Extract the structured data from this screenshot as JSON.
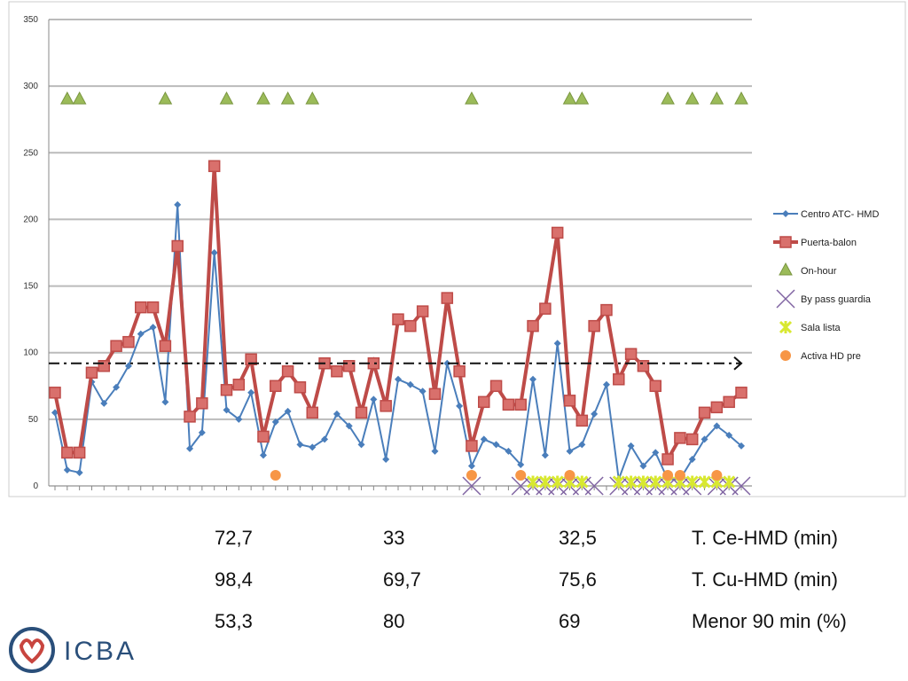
{
  "chart_data": {
    "type": "line",
    "categories": [
      null,
      null,
      null,
      null,
      null,
      null,
      null,
      null,
      null,
      null,
      null,
      null,
      null,
      null,
      null,
      null,
      null,
      null,
      null,
      null,
      null,
      null,
      null,
      null,
      null,
      null,
      null,
      null,
      null,
      null,
      null,
      null,
      null,
      null,
      null,
      null,
      null,
      null,
      null,
      null,
      null,
      null,
      null,
      null,
      null,
      null,
      null,
      null,
      null,
      null,
      null,
      null,
      null,
      null,
      null,
      null,
      null
    ],
    "ylim": [
      0,
      350
    ],
    "yticks": [
      0,
      50,
      100,
      150,
      200,
      250,
      300,
      350
    ],
    "grid": true,
    "legend": "right",
    "reference_line": 92,
    "series": [
      {
        "name": "Centro ATC- HMD",
        "color": "#4a7ebb",
        "marker": "diamond",
        "line": true,
        "values": [
          55,
          12,
          10,
          78,
          62,
          74,
          90,
          114,
          119,
          63,
          211,
          28,
          40,
          175,
          57,
          50,
          70,
          23,
          48,
          56,
          31,
          29,
          35,
          54,
          45,
          31,
          65,
          20,
          80,
          76,
          71,
          26,
          92,
          60,
          15,
          35,
          31,
          26,
          16,
          80,
          23,
          107,
          26,
          31,
          54,
          76,
          5,
          30,
          15,
          25,
          5,
          5,
          20,
          35,
          45,
          38,
          30
        ]
      },
      {
        "name": "Puerta-balon",
        "color": "#be4b48",
        "marker": "square",
        "line": true,
        "values": [
          70,
          25,
          25,
          85,
          90,
          105,
          108,
          134,
          134,
          105,
          180,
          52,
          62,
          240,
          72,
          76,
          95,
          37,
          75,
          86,
          74,
          55,
          92,
          86,
          90,
          55,
          92,
          60,
          125,
          120,
          131,
          69,
          141,
          86,
          30,
          63,
          75,
          61,
          61,
          120,
          133,
          190,
          64,
          49,
          120,
          132,
          80,
          99,
          90,
          75,
          20,
          36,
          35,
          55,
          59,
          63,
          70
        ]
      },
      {
        "name": "On-hour",
        "color": "#9bbb59",
        "marker": "triangle",
        "line": false,
        "values": [
          null,
          290,
          290,
          null,
          null,
          null,
          null,
          null,
          null,
          290,
          null,
          null,
          null,
          null,
          290,
          null,
          null,
          290,
          null,
          290,
          null,
          290,
          null,
          null,
          null,
          null,
          null,
          null,
          null,
          null,
          null,
          null,
          null,
          null,
          290,
          null,
          null,
          null,
          null,
          null,
          null,
          null,
          290,
          290,
          null,
          null,
          null,
          null,
          null,
          null,
          290,
          null,
          290,
          null,
          290,
          null,
          290
        ]
      },
      {
        "name": "By pass guardia",
        "color": "#8064a2",
        "marker": "x",
        "line": false,
        "values": [
          null,
          null,
          null,
          null,
          null,
          null,
          null,
          null,
          null,
          null,
          null,
          null,
          null,
          null,
          null,
          null,
          null,
          null,
          null,
          null,
          null,
          null,
          null,
          null,
          null,
          null,
          null,
          null,
          null,
          null,
          null,
          null,
          null,
          null,
          0,
          null,
          null,
          null,
          0,
          0,
          0,
          0,
          0,
          0,
          0,
          null,
          0,
          0,
          0,
          0,
          0,
          0,
          0,
          null,
          0,
          0,
          0
        ]
      },
      {
        "name": "Sala lista",
        "color": "#d8e830",
        "marker": "star",
        "line": false,
        "values": [
          null,
          null,
          null,
          null,
          null,
          null,
          null,
          null,
          null,
          null,
          null,
          null,
          null,
          null,
          null,
          null,
          null,
          null,
          null,
          null,
          null,
          null,
          null,
          null,
          null,
          null,
          null,
          null,
          null,
          null,
          null,
          null,
          null,
          null,
          null,
          null,
          null,
          null,
          null,
          3,
          3,
          3,
          3,
          3,
          null,
          null,
          3,
          3,
          3,
          3,
          3,
          3,
          3,
          3,
          3,
          3,
          null
        ]
      },
      {
        "name": "Activa HD pre",
        "color": "#f79646",
        "marker": "circle",
        "line": false,
        "values": [
          null,
          null,
          null,
          null,
          null,
          null,
          null,
          null,
          null,
          null,
          null,
          null,
          null,
          null,
          null,
          null,
          null,
          null,
          8,
          null,
          null,
          null,
          null,
          null,
          null,
          null,
          null,
          null,
          null,
          null,
          null,
          null,
          null,
          null,
          8,
          null,
          null,
          null,
          8,
          null,
          null,
          null,
          8,
          null,
          null,
          null,
          null,
          null,
          null,
          null,
          8,
          8,
          null,
          null,
          8,
          null,
          null
        ]
      }
    ]
  },
  "table": {
    "rows": [
      [
        "72,7",
        "33",
        "32,5",
        "T. Ce-HMD (min)"
      ],
      [
        "98,4",
        "69,7",
        "75,6",
        "T. Cu-HMD (min)"
      ],
      [
        "53,3",
        "80",
        "69",
        "Menor 90 min (%)"
      ]
    ]
  },
  "logo": {
    "text": "ICBA"
  }
}
